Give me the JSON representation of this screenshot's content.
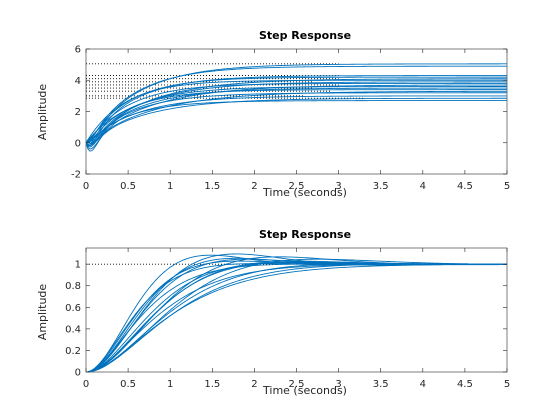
{
  "chart_data": [
    {
      "type": "line",
      "title": "Step Response",
      "xlabel": "Time (seconds)",
      "ylabel": "Amplitude",
      "xlim": [
        0,
        5
      ],
      "ylim": [
        -2,
        6
      ],
      "xticks": [
        0,
        0.5,
        1,
        1.5,
        2,
        2.5,
        3,
        3.5,
        4,
        4.5,
        5
      ],
      "yticks": [
        -2,
        0,
        2,
        4,
        6
      ],
      "xtick_labels": [
        "0",
        "0.5",
        "1",
        "1.5",
        "2",
        "2.5",
        "3",
        "3.5",
        "4",
        "4.5",
        "5"
      ],
      "ytick_labels": [
        "-2",
        "0",
        "2",
        "4",
        "6"
      ],
      "grid": false,
      "line_color": "#0072BD",
      "series": [
        {
          "kind": "first_order_undershoot",
          "y0": 0,
          "final": 5.05,
          "tau": 0.6,
          "undershoot": -0.5
        },
        {
          "kind": "first_order_undershoot",
          "y0": 0,
          "final": 4.9,
          "tau": 0.55,
          "undershoot": -0.3
        },
        {
          "kind": "first_order_undershoot",
          "y0": 0,
          "final": 4.3,
          "tau": 0.55,
          "undershoot": -0.6
        },
        {
          "kind": "first_order_undershoot",
          "y0": 0,
          "final": 4.2,
          "tau": 0.5,
          "undershoot": -0.2
        },
        {
          "kind": "first_order_undershoot",
          "y0": 0,
          "final": 4.1,
          "tau": 0.7,
          "undershoot": -0.9
        },
        {
          "kind": "first_order_undershoot",
          "y0": 0,
          "final": 4.0,
          "tau": 0.45,
          "undershoot": 0
        },
        {
          "kind": "first_order_undershoot",
          "y0": 0,
          "final": 3.9,
          "tau": 0.65,
          "undershoot": -0.4
        },
        {
          "kind": "first_order_undershoot",
          "y0": 0,
          "final": 3.8,
          "tau": 0.5,
          "undershoot": -0.1
        },
        {
          "kind": "first_order_undershoot",
          "y0": 0,
          "final": 3.7,
          "tau": 0.75,
          "undershoot": -0.7
        },
        {
          "kind": "first_order_undershoot",
          "y0": 0,
          "final": 3.6,
          "tau": 0.55,
          "undershoot": -0.2
        },
        {
          "kind": "first_order_undershoot",
          "y0": 0,
          "final": 3.5,
          "tau": 0.6,
          "undershoot": -0.5
        },
        {
          "kind": "first_order_undershoot",
          "y0": 0,
          "final": 3.4,
          "tau": 0.5,
          "undershoot": 0
        },
        {
          "kind": "first_order_undershoot",
          "y0": 0,
          "final": 3.3,
          "tau": 0.8,
          "undershoot": -0.3
        },
        {
          "kind": "first_order_undershoot",
          "y0": 0,
          "final": 3.2,
          "tau": 0.55,
          "undershoot": -0.6
        },
        {
          "kind": "first_order_undershoot",
          "y0": 0,
          "final": 3.0,
          "tau": 0.6,
          "undershoot": -0.1
        },
        {
          "kind": "first_order_undershoot",
          "y0": 0,
          "final": 2.85,
          "tau": 0.7,
          "undershoot": -0.4
        },
        {
          "kind": "first_order_undershoot",
          "y0": 0,
          "final": 2.7,
          "tau": 0.5,
          "undershoot": -0.2
        }
      ],
      "reference_lines": [
        {
          "y": 5.05,
          "x_end": 3.0
        },
        {
          "y": 4.3,
          "x_end": 3.0
        },
        {
          "y": 4.1,
          "x_end": 3.0
        },
        {
          "y": 3.9,
          "x_end": 2.7
        },
        {
          "y": 3.7,
          "x_end": 3.0
        },
        {
          "y": 3.5,
          "x_end": 2.7
        },
        {
          "y": 3.3,
          "x_end": 2.9
        },
        {
          "y": 3.0,
          "x_end": 2.6
        },
        {
          "y": 2.85,
          "x_end": 3.3
        }
      ]
    },
    {
      "type": "line",
      "title": "Step Response",
      "xlabel": "Time (seconds)",
      "ylabel": "Amplitude",
      "xlim": [
        0,
        5
      ],
      "ylim": [
        0,
        1.15
      ],
      "xticks": [
        0,
        0.5,
        1,
        1.5,
        2,
        2.5,
        3,
        3.5,
        4,
        4.5,
        5
      ],
      "yticks": [
        0,
        0.2,
        0.4,
        0.6,
        0.8,
        1
      ],
      "xtick_labels": [
        "0",
        "0.5",
        "1",
        "1.5",
        "2",
        "2.5",
        "3",
        "3.5",
        "4",
        "4.5",
        "5"
      ],
      "ytick_labels": [
        "0",
        "0.2",
        "0.4",
        "0.6",
        "0.8",
        "1"
      ],
      "grid": false,
      "line_color": "#0072BD",
      "series": [
        {
          "kind": "second_order",
          "wn": 1.9,
          "zeta": 0.75
        },
        {
          "kind": "second_order",
          "wn": 2.1,
          "zeta": 0.8
        },
        {
          "kind": "second_order",
          "wn": 2.3,
          "zeta": 0.7
        },
        {
          "kind": "second_order",
          "wn": 1.7,
          "zeta": 0.85
        },
        {
          "kind": "second_order",
          "wn": 2.5,
          "zeta": 0.9
        },
        {
          "kind": "second_order",
          "wn": 1.8,
          "zeta": 0.65
        },
        {
          "kind": "second_order",
          "wn": 2.0,
          "zeta": 0.95
        },
        {
          "kind": "second_order",
          "wn": 2.6,
          "zeta": 0.75
        },
        {
          "kind": "second_order",
          "wn": 1.6,
          "zeta": 0.7
        },
        {
          "kind": "second_order",
          "wn": 2.2,
          "zeta": 0.6
        },
        {
          "kind": "second_order",
          "wn": 2.8,
          "zeta": 0.85
        },
        {
          "kind": "second_order",
          "wn": 1.75,
          "zeta": 1.0
        },
        {
          "kind": "second_order",
          "wn": 2.4,
          "zeta": 0.68
        },
        {
          "kind": "second_order",
          "wn": 1.95,
          "zeta": 0.78
        },
        {
          "kind": "second_order",
          "wn": 2.7,
          "zeta": 0.62
        },
        {
          "kind": "second_order",
          "wn": 1.65,
          "zeta": 0.9
        }
      ],
      "reference_lines": [
        {
          "y": 1.0,
          "x_end": 3.6
        }
      ]
    }
  ]
}
